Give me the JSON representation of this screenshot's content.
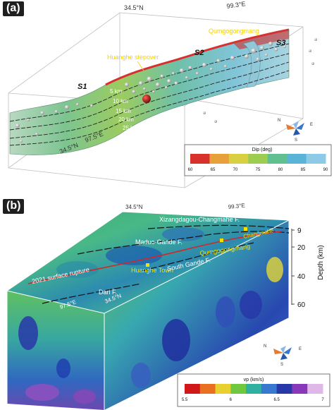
{
  "panel_a": {
    "label": "(a)",
    "coord_top_left": "34.5°N",
    "coord_top_right": "99.3°E",
    "coord_bottom_1": "34.5°N",
    "coord_bottom_2": "97.5°E",
    "huanghe_stepover": "Huanghe stepover",
    "qumgogongmang": "Qumgogongmang",
    "s1": "S1",
    "s2": "S2",
    "s3": "S3",
    "depth_labels": [
      "5 km",
      "10 km",
      "15 km",
      "20 km",
      "25 km"
    ],
    "compass": {
      "n": "N",
      "e": "E",
      "s": "S"
    },
    "colorbar": {
      "title": "Dip (deg)",
      "ticks": [
        "60",
        "65",
        "70",
        "75",
        "80",
        "85",
        "90"
      ],
      "colors": [
        "#d8302a",
        "#e8a03a",
        "#d8d040",
        "#9ccc50",
        "#60c090",
        "#5ab4d8",
        "#8ccae8"
      ]
    }
  },
  "panel_b": {
    "label": "(b)",
    "coord_top_left": "34.5°N",
    "coord_top_right": "99.3°E",
    "coord_bottom_1": "97.5°E",
    "coord_bottom_2": "34.5°N",
    "fault_xizang": "Xizangdagou-Changmahe F.",
    "fault_maduo": "Maduo-Gande F.",
    "qumgogongmang": "Qumgogongmang",
    "changmahe": "Changmahe",
    "surface_rupture": "2021 surface rupture",
    "huanghe_town": "Huanghe Town",
    "south_gande": "South Gande F.",
    "dari": "Dari F.",
    "depth_axis": {
      "title": "Depth (km)",
      "ticks": [
        "9",
        "20",
        "40",
        "60"
      ]
    },
    "compass": {
      "n": "N",
      "e": "E",
      "s": "S"
    },
    "colorbar": {
      "title": "vp (km/s)",
      "ticks": [
        "5.5",
        "6",
        "6.5",
        "7"
      ],
      "colors": [
        "#d01818",
        "#e87020",
        "#e8d030",
        "#70c840",
        "#30b0a0",
        "#3878d0",
        "#2838a8",
        "#8838b8",
        "#e0b8e8"
      ]
    }
  }
}
